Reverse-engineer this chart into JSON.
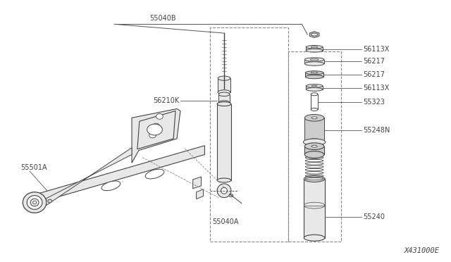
{
  "background_color": "#ffffff",
  "diagram_ref": "X431000E",
  "line_color": "#555555",
  "part_color": "#444444",
  "text_color": "#444444",
  "fontsize": 7.0,
  "fig_width": 6.4,
  "fig_height": 3.72,
  "dpi": 100,
  "parts_right": [
    "56113X",
    "56217",
    "56217",
    "56113X",
    "55323",
    "55248N",
    "55240"
  ],
  "labels_left": [
    "55040B",
    "56210K",
    "55501A",
    "55040A"
  ],
  "ref": "X431000E"
}
